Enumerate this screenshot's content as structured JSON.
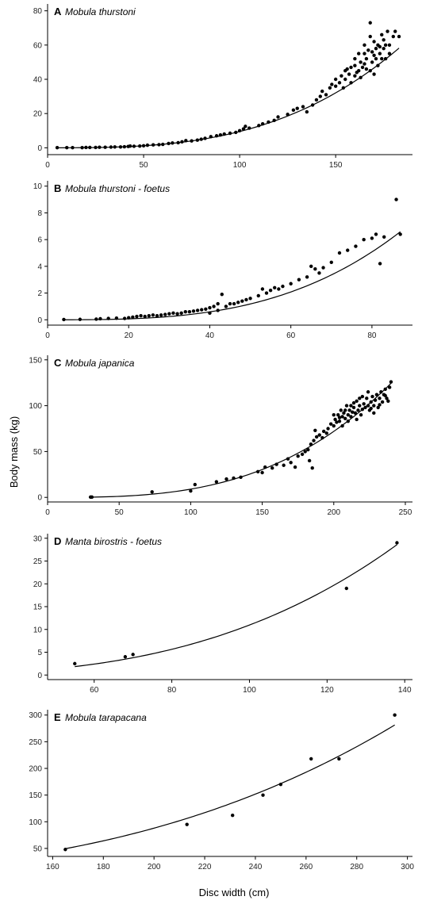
{
  "figure": {
    "xlabel": "Disc width (cm)",
    "ylabel": "Body mass (kg)"
  },
  "chart_data": [
    {
      "type": "scatter",
      "letter": "A",
      "title": "Mobula thurstoni",
      "xlim": [
        0,
        190
      ],
      "ylim": [
        -4,
        84
      ],
      "xticks": [
        0,
        50,
        100,
        150
      ],
      "yticks": [
        0,
        20,
        40,
        60,
        80
      ],
      "fit": {
        "a": 9.5e-06,
        "b": 3.0
      },
      "points": [
        [
          5,
          0.1
        ],
        [
          10,
          0.1
        ],
        [
          13,
          0.1
        ],
        [
          18,
          0.1
        ],
        [
          20,
          0.2
        ],
        [
          22,
          0.2
        ],
        [
          25,
          0.2
        ],
        [
          27,
          0.3
        ],
        [
          30,
          0.3
        ],
        [
          33,
          0.4
        ],
        [
          35,
          0.5
        ],
        [
          38,
          0.5
        ],
        [
          40,
          0.6
        ],
        [
          42,
          0.8
        ],
        [
          43,
          1.0
        ],
        [
          45,
          0.9
        ],
        [
          48,
          1.0
        ],
        [
          50,
          1.2
        ],
        [
          52,
          1.5
        ],
        [
          55,
          1.7
        ],
        [
          58,
          1.8
        ],
        [
          60,
          2.0
        ],
        [
          63,
          2.5
        ],
        [
          65,
          2.8
        ],
        [
          68,
          3.0
        ],
        [
          70,
          3.5
        ],
        [
          72,
          4.2
        ],
        [
          75,
          4.0
        ],
        [
          78,
          4.5
        ],
        [
          80,
          5.0
        ],
        [
          82,
          5.5
        ],
        [
          85,
          6.5
        ],
        [
          88,
          7.0
        ],
        [
          90,
          7.5
        ],
        [
          92,
          8.0
        ],
        [
          95,
          8.5
        ],
        [
          98,
          9.0
        ],
        [
          100,
          10.0
        ],
        [
          102,
          11.0
        ],
        [
          103,
          12.5
        ],
        [
          105,
          11.5
        ],
        [
          110,
          13.0
        ],
        [
          112,
          14.0
        ],
        [
          115,
          15.0
        ],
        [
          118,
          16.0
        ],
        [
          120,
          18.0
        ],
        [
          125,
          19.5
        ],
        [
          128,
          22.0
        ],
        [
          130,
          23.0
        ],
        [
          133,
          24.0
        ],
        [
          135,
          21.0
        ],
        [
          138,
          25.0
        ],
        [
          140,
          28.0
        ],
        [
          142,
          30.0
        ],
        [
          143,
          33.0
        ],
        [
          145,
          31.0
        ],
        [
          147,
          35.0
        ],
        [
          148,
          37.0
        ],
        [
          150,
          36.0
        ],
        [
          150,
          40.0
        ],
        [
          152,
          38.0
        ],
        [
          153,
          42.0
        ],
        [
          155,
          40.0
        ],
        [
          155,
          45.0
        ],
        [
          157,
          43.0
        ],
        [
          158,
          47.0
        ],
        [
          158,
          38.0
        ],
        [
          160,
          48.0
        ],
        [
          160,
          42.0
        ],
        [
          160,
          52.0
        ],
        [
          162,
          45.0
        ],
        [
          162,
          55.0
        ],
        [
          163,
          50.0
        ],
        [
          164,
          47.0
        ],
        [
          165,
          49.0
        ],
        [
          165,
          55.0
        ],
        [
          165,
          60.0
        ],
        [
          166,
          52.0
        ],
        [
          167,
          57.0
        ],
        [
          168,
          45.0
        ],
        [
          168,
          73.0
        ],
        [
          168,
          65.0
        ],
        [
          169,
          50.0
        ],
        [
          170,
          54.0
        ],
        [
          170,
          62.0
        ],
        [
          171,
          58.0
        ],
        [
          172,
          60.0
        ],
        [
          172,
          48.0
        ],
        [
          173,
          55.0
        ],
        [
          174,
          66.0
        ],
        [
          175,
          58.0
        ],
        [
          175,
          63.0
        ],
        [
          176,
          52.0
        ],
        [
          177,
          68.0
        ],
        [
          178,
          60.0
        ],
        [
          180,
          65.0
        ],
        [
          181,
          68.0
        ],
        [
          183,
          65.0
        ],
        [
          161,
          44.0
        ],
        [
          163,
          41.0
        ],
        [
          166,
          46.0
        ],
        [
          154,
          35.0
        ],
        [
          156,
          46.0
        ],
        [
          170,
          43.0
        ],
        [
          174,
          52.0
        ],
        [
          176,
          60.0
        ],
        [
          178,
          55.0
        ],
        [
          169,
          56.0
        ],
        [
          171,
          52.0
        ],
        [
          173,
          59.0
        ]
      ]
    },
    {
      "type": "scatter",
      "letter": "B",
      "title": "Mobula thurstoni - foetus",
      "xlim": [
        0,
        90
      ],
      "ylim": [
        -0.4,
        10.4
      ],
      "xticks": [
        0,
        20,
        40,
        60,
        80
      ],
      "yticks": [
        0,
        2,
        4,
        6,
        8,
        10
      ],
      "fit": {
        "a": 6.4e-06,
        "b": 3.1
      },
      "points": [
        [
          4,
          0.02
        ],
        [
          8,
          0.03
        ],
        [
          12,
          0.05
        ],
        [
          13,
          0.08
        ],
        [
          15,
          0.1
        ],
        [
          17,
          0.12
        ],
        [
          19,
          0.1
        ],
        [
          20,
          0.15
        ],
        [
          21,
          0.2
        ],
        [
          22,
          0.25
        ],
        [
          23,
          0.3
        ],
        [
          24,
          0.25
        ],
        [
          25,
          0.3
        ],
        [
          26,
          0.35
        ],
        [
          27,
          0.3
        ],
        [
          28,
          0.35
        ],
        [
          29,
          0.4
        ],
        [
          30,
          0.45
        ],
        [
          31,
          0.5
        ],
        [
          32,
          0.45
        ],
        [
          33,
          0.5
        ],
        [
          34,
          0.6
        ],
        [
          35,
          0.6
        ],
        [
          36,
          0.65
        ],
        [
          37,
          0.7
        ],
        [
          38,
          0.75
        ],
        [
          39,
          0.8
        ],
        [
          40,
          0.9
        ],
        [
          40,
          0.5
        ],
        [
          41,
          1.0
        ],
        [
          42,
          0.7
        ],
        [
          42,
          1.2
        ],
        [
          43,
          1.9
        ],
        [
          44,
          1.0
        ],
        [
          45,
          1.2
        ],
        [
          46,
          1.2
        ],
        [
          47,
          1.3
        ],
        [
          48,
          1.4
        ],
        [
          49,
          1.5
        ],
        [
          50,
          1.6
        ],
        [
          52,
          1.8
        ],
        [
          53,
          2.3
        ],
        [
          54,
          2.0
        ],
        [
          55,
          2.2
        ],
        [
          56,
          2.4
        ],
        [
          57,
          2.3
        ],
        [
          58,
          2.5
        ],
        [
          60,
          2.7
        ],
        [
          62,
          3.0
        ],
        [
          64,
          3.2
        ],
        [
          65,
          4.0
        ],
        [
          66,
          3.8
        ],
        [
          67,
          3.5
        ],
        [
          68,
          3.9
        ],
        [
          70,
          4.3
        ],
        [
          72,
          5.0
        ],
        [
          74,
          5.2
        ],
        [
          76,
          5.5
        ],
        [
          78,
          6.0
        ],
        [
          80,
          6.1
        ],
        [
          81,
          6.4
        ],
        [
          82,
          4.2
        ],
        [
          83,
          6.2
        ],
        [
          86,
          9.0
        ],
        [
          87,
          6.4
        ]
      ]
    },
    {
      "type": "scatter",
      "letter": "C",
      "title": "Mobula japanica",
      "xlim": [
        0,
        255
      ],
      "ylim": [
        -5,
        155
      ],
      "xticks": [
        0,
        50,
        100,
        150,
        200,
        250
      ],
      "yticks": [
        0,
        50,
        100,
        150
      ],
      "fit": {
        "a": 9e-06,
        "b": 3.0
      },
      "points": [
        [
          30,
          0.3
        ],
        [
          31,
          0.3
        ],
        [
          73,
          6.0
        ],
        [
          100,
          7.0
        ],
        [
          103,
          14.0
        ],
        [
          118,
          17.0
        ],
        [
          125,
          20.0
        ],
        [
          130,
          21.0
        ],
        [
          135,
          22.0
        ],
        [
          147,
          28.0
        ],
        [
          150,
          27.0
        ],
        [
          152,
          33.0
        ],
        [
          157,
          32.0
        ],
        [
          160,
          36.0
        ],
        [
          165,
          35.0
        ],
        [
          168,
          42.0
        ],
        [
          170,
          38.0
        ],
        [
          173,
          33.0
        ],
        [
          175,
          45.0
        ],
        [
          178,
          47.0
        ],
        [
          180,
          50.0
        ],
        [
          182,
          52.0
        ],
        [
          183,
          40.0
        ],
        [
          184,
          58.0
        ],
        [
          185,
          32.0
        ],
        [
          186,
          62.0
        ],
        [
          187,
          73.0
        ],
        [
          188,
          66.0
        ],
        [
          190,
          68.0
        ],
        [
          192,
          65.0
        ],
        [
          193,
          72.0
        ],
        [
          195,
          70.0
        ],
        [
          196,
          75.0
        ],
        [
          198,
          80.0
        ],
        [
          200,
          78.0
        ],
        [
          201,
          85.0
        ],
        [
          202,
          82.0
        ],
        [
          203,
          90.0
        ],
        [
          204,
          83.0
        ],
        [
          205,
          95.0
        ],
        [
          206,
          78.0
        ],
        [
          206,
          88.0
        ],
        [
          207,
          92.0
        ],
        [
          208,
          86.0
        ],
        [
          209,
          100.0
        ],
        [
          210,
          90.0
        ],
        [
          211,
          95.0
        ],
        [
          212,
          88.0
        ],
        [
          213,
          93.0
        ],
        [
          214,
          98.0
        ],
        [
          215,
          92.0
        ],
        [
          216,
          105.0
        ],
        [
          217,
          95.0
        ],
        [
          218,
          100.0
        ],
        [
          219,
          90.0
        ],
        [
          220,
          96.0
        ],
        [
          221,
          102.0
        ],
        [
          222,
          98.0
        ],
        [
          223,
          108.0
        ],
        [
          224,
          100.0
        ],
        [
          225,
          95.0
        ],
        [
          226,
          104.0
        ],
        [
          227,
          110.0
        ],
        [
          228,
          100.0
        ],
        [
          229,
          106.0
        ],
        [
          230,
          112.0
        ],
        [
          231,
          98.0
        ],
        [
          232,
          108.0
        ],
        [
          233,
          115.0
        ],
        [
          234,
          104.0
        ],
        [
          235,
          112.0
        ],
        [
          236,
          118.0
        ],
        [
          237,
          108.0
        ],
        [
          238,
          105.0
        ],
        [
          239,
          120.0
        ],
        [
          240,
          126.0
        ],
        [
          212,
          100.0
        ],
        [
          216,
          85.0
        ],
        [
          220,
          110.0
        ],
        [
          224,
          115.0
        ],
        [
          228,
          92.0
        ],
        [
          208,
          95.0
        ],
        [
          204,
          87.0
        ],
        [
          200,
          90.0
        ],
        [
          214,
          103.0
        ],
        [
          218,
          108.0
        ],
        [
          210,
          83.0
        ],
        [
          226,
          97.0
        ],
        [
          232,
          101.0
        ],
        [
          236,
          111.0
        ]
      ]
    },
    {
      "type": "scatter",
      "letter": "D",
      "title": "Manta birostris - foetus",
      "xlim": [
        48,
        142
      ],
      "ylim": [
        -1,
        31
      ],
      "xticks": [
        60,
        80,
        100,
        120,
        140
      ],
      "yticks": [
        0,
        5,
        10,
        15,
        20,
        25,
        30
      ],
      "fit": {
        "a": 1.23e-05,
        "b": 2.975
      },
      "points": [
        [
          55,
          2.5
        ],
        [
          68,
          4.0
        ],
        [
          70,
          4.5
        ],
        [
          125,
          19.0
        ],
        [
          138,
          29.0
        ]
      ]
    },
    {
      "type": "scatter",
      "letter": "E",
      "title": "Mobula tarapacana",
      "xlim": [
        158,
        302
      ],
      "ylim": [
        35,
        310
      ],
      "xticks": [
        160,
        180,
        200,
        220,
        240,
        260,
        280,
        300
      ],
      "yticks": [
        50,
        100,
        150,
        200,
        250,
        300
      ],
      "fit": {
        "a": 1.16e-05,
        "b": 2.99
      },
      "points": [
        [
          165,
          48.0
        ],
        [
          213,
          95.0
        ],
        [
          231,
          112.0
        ],
        [
          243,
          150.0
        ],
        [
          250,
          170.0
        ],
        [
          262,
          218.0
        ],
        [
          273,
          218.0
        ],
        [
          295,
          300.0
        ]
      ]
    }
  ]
}
